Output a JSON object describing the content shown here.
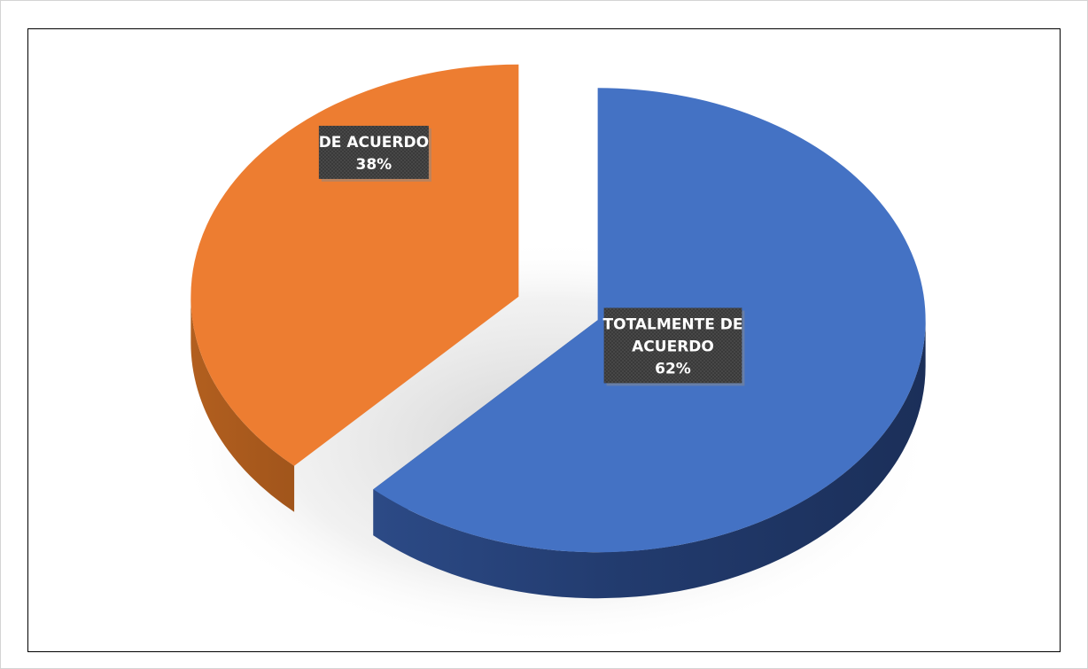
{
  "chart_data": {
    "type": "pie",
    "title": "",
    "slices": [
      {
        "label": "DE ACUERDO",
        "value": 38,
        "percent_label": "38%",
        "color": "#ED7D31"
      },
      {
        "label": "TOTALMENTE DE ACUERDO",
        "value": 62,
        "percent_label": "62%",
        "color": "#4472C4"
      }
    ],
    "legend": "none",
    "style": "3d-exploded",
    "data_labels": "category-and-percent"
  }
}
